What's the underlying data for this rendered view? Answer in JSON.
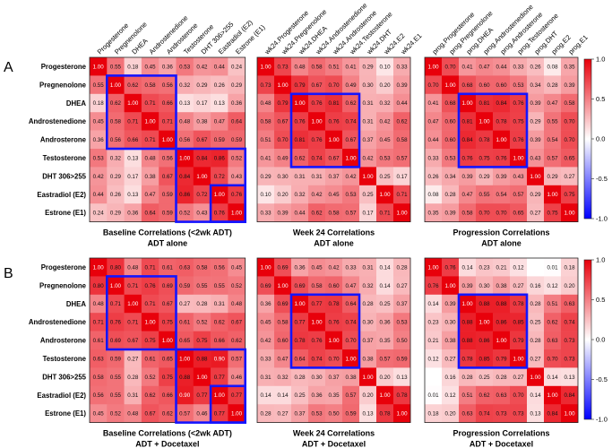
{
  "figure": {
    "panel_labels": [
      "A",
      "B"
    ],
    "colorbar_ticks": [
      "1.0",
      "0.5",
      "0.0",
      "-0.5",
      "-1.0"
    ],
    "colorbar_range": [
      -1.0,
      1.0
    ],
    "colors": {
      "positive": "#e8000b",
      "neutral": "#ffffff",
      "negative": "#0000ff",
      "highlight_box": "#1414ff"
    }
  },
  "chart_data": [
    {
      "type": "heatmap",
      "id": "A1",
      "title": "Baseline Correlations (<2wk ADT)",
      "subtitle": "ADT alone",
      "row_labels": [
        "Progesterone",
        "Pregnenolone",
        "DHEA",
        "Androstenedione",
        "Androsterone",
        "Testosterone",
        "DHT 306>255",
        "Eastradiol (E2)",
        "Estrone (E1)"
      ],
      "col_labels": [
        "Progesterone",
        "Pregnenolone",
        "DHEA",
        "Androstenedione",
        "Androsterone",
        "Testosterone",
        "DHT 306>255",
        "Eastradiol (E2)",
        "Estrone (E1)"
      ],
      "values": [
        [
          "1.00",
          "0.55",
          "0.18",
          "0.45",
          "0.36",
          "0.53",
          "0.42",
          "0.44",
          "0.24"
        ],
        [
          "0.55",
          "1.00",
          "0.62",
          "0.58",
          "0.56",
          "0.32",
          "0.29",
          "0.26",
          "0.29"
        ],
        [
          "0.18",
          "0.62",
          "1.00",
          "0.71",
          "0.66",
          "0.13",
          "0.17",
          "0.13",
          "0.36"
        ],
        [
          "0.45",
          "0.58",
          "0.71",
          "1.00",
          "0.71",
          "0.48",
          "0.38",
          "0.47",
          "0.64"
        ],
        [
          "0.36",
          "0.56",
          "0.66",
          "0.71",
          "1.00",
          "0.56",
          "0.67",
          "0.59",
          "0.59"
        ],
        [
          "0.53",
          "0.32",
          "0.13",
          "0.48",
          "0.56",
          "1.00",
          "0.84",
          "0.86",
          "0.52"
        ],
        [
          "0.42",
          "0.29",
          "0.17",
          "0.38",
          "0.67",
          "0.84",
          "1.00",
          "0.72",
          "0.43"
        ],
        [
          "0.44",
          "0.26",
          "0.13",
          "0.47",
          "0.59",
          "0.86",
          "0.72",
          "1.00",
          "0.76"
        ],
        [
          "0.24",
          "0.29",
          "0.36",
          "0.64",
          "0.59",
          "0.52",
          "0.43",
          "0.76",
          "1.00"
        ]
      ],
      "boxes": [
        {
          "r0": 1,
          "c0": 1,
          "r1": 4,
          "c1": 4
        },
        {
          "r0": 5,
          "c0": 5,
          "r1": 8,
          "c1": 8
        },
        {
          "r0": 7,
          "c0": 7,
          "r1": 8,
          "c1": 8
        }
      ]
    },
    {
      "type": "heatmap",
      "id": "A2",
      "title": "Week 24 Correlations",
      "subtitle": "ADT alone",
      "col_labels": [
        "wk24.Progesterone",
        "wk24.Pregnenolone",
        "wk24.DHEA",
        "wk24.Androstenedione",
        "wk24.Androsterone",
        "wk24.Testosterone",
        "wk24.DHT",
        "wk24.E2",
        "wk24.E1"
      ],
      "values": [
        [
          "1.00",
          "0.73",
          "0.48",
          "0.58",
          "0.51",
          "0.41",
          "0.29",
          "0.10",
          "0.33"
        ],
        [
          "0.73",
          "1.00",
          "0.79",
          "0.67",
          "0.70",
          "0.49",
          "0.30",
          "0.20",
          "0.39"
        ],
        [
          "0.48",
          "0.79",
          "1.00",
          "0.76",
          "0.81",
          "0.62",
          "0.31",
          "0.32",
          "0.44"
        ],
        [
          "0.58",
          "0.67",
          "0.76",
          "1.00",
          "0.76",
          "0.74",
          "0.31",
          "0.42",
          "0.62"
        ],
        [
          "0.51",
          "0.70",
          "0.81",
          "0.76",
          "1.00",
          "0.67",
          "0.37",
          "0.45",
          "0.58"
        ],
        [
          "0.41",
          "0.49",
          "0.62",
          "0.74",
          "0.67",
          "1.00",
          "0.42",
          "0.53",
          "0.57"
        ],
        [
          "0.29",
          "0.30",
          "0.31",
          "0.31",
          "0.37",
          "0.42",
          "1.00",
          "0.25",
          "0.17"
        ],
        [
          "0.10",
          "0.20",
          "0.32",
          "0.42",
          "0.45",
          "0.53",
          "0.25",
          "1.00",
          "0.71"
        ],
        [
          "0.33",
          "0.39",
          "0.44",
          "0.62",
          "0.58",
          "0.57",
          "0.17",
          "0.71",
          "1.00"
        ]
      ],
      "boxes": [
        {
          "r0": 2,
          "c0": 2,
          "r1": 5,
          "c1": 5
        }
      ]
    },
    {
      "type": "heatmap",
      "id": "A3",
      "title": "Progression Correlations",
      "subtitle": "ADT alone",
      "col_labels": [
        "prog.Progesterone",
        "prog.Pregnenolone",
        "prog.DHEA",
        "prog.Androstenedione",
        "prog.Androsterone",
        "prog.Testosterone",
        "prog.DHT",
        "prog.E2",
        "prog.E1"
      ],
      "values": [
        [
          "1.00",
          "0.70",
          "0.41",
          "0.47",
          "0.44",
          "0.33",
          "0.26",
          "0.08",
          "0.35"
        ],
        [
          "0.70",
          "1.00",
          "0.68",
          "0.60",
          "0.60",
          "0.53",
          "0.34",
          "0.28",
          "0.39"
        ],
        [
          "0.41",
          "0.68",
          "1.00",
          "0.81",
          "0.84",
          "0.76",
          "0.39",
          "0.47",
          "0.58"
        ],
        [
          "0.47",
          "0.60",
          "0.81",
          "1.00",
          "0.78",
          "0.75",
          "0.29",
          "0.55",
          "0.70"
        ],
        [
          "0.44",
          "0.60",
          "0.84",
          "0.78",
          "1.00",
          "0.76",
          "0.39",
          "0.54",
          "0.70"
        ],
        [
          "0.33",
          "0.53",
          "0.76",
          "0.75",
          "0.76",
          "1.00",
          "0.43",
          "0.57",
          "0.65"
        ],
        [
          "0.26",
          "0.34",
          "0.39",
          "0.29",
          "0.39",
          "0.43",
          "1.00",
          "0.29",
          "0.27"
        ],
        [
          "0.08",
          "0.28",
          "0.47",
          "0.55",
          "0.54",
          "0.57",
          "0.29",
          "1.00",
          "0.75"
        ],
        [
          "0.35",
          "0.39",
          "0.58",
          "0.70",
          "0.70",
          "0.65",
          "0.27",
          "0.75",
          "1.00"
        ]
      ],
      "boxes": [
        {
          "r0": 2,
          "c0": 2,
          "r1": 5,
          "c1": 5
        }
      ]
    },
    {
      "type": "heatmap",
      "id": "B1",
      "title": "Baseline Correlations (<2wk ADT)",
      "subtitle": "ADT + Docetaxel",
      "row_labels": [
        "Progesterone",
        "Pregnenolone",
        "DHEA",
        "Androstenedione",
        "Androsterone",
        "Testosterone",
        "DHT 306>255",
        "Eastradiol (E2)",
        "Estrone (E1)"
      ],
      "values": [
        [
          "1.00",
          "0.80",
          "0.48",
          "0.71",
          "0.61",
          "0.63",
          "0.58",
          "0.56",
          "0.45"
        ],
        [
          "0.80",
          "1.00",
          "0.71",
          "0.76",
          "0.69",
          "0.59",
          "0.55",
          "0.55",
          "0.52"
        ],
        [
          "0.48",
          "0.71",
          "1.00",
          "0.71",
          "0.67",
          "0.27",
          "0.28",
          "0.31",
          "0.48"
        ],
        [
          "0.71",
          "0.76",
          "0.71",
          "1.00",
          "0.75",
          "0.61",
          "0.52",
          "0.62",
          "0.67"
        ],
        [
          "0.61",
          "0.69",
          "0.67",
          "0.75",
          "1.00",
          "0.65",
          "0.75",
          "0.66",
          "0.62"
        ],
        [
          "0.63",
          "0.59",
          "0.27",
          "0.61",
          "0.65",
          "1.00",
          "0.88",
          "0.90",
          "0.57"
        ],
        [
          "0.58",
          "0.55",
          "0.28",
          "0.52",
          "0.75",
          "0.88",
          "1.00",
          "0.77",
          "0.46"
        ],
        [
          "0.56",
          "0.55",
          "0.31",
          "0.62",
          "0.66",
          "0.90",
          "0.77",
          "1.00",
          "0.77"
        ],
        [
          "0.45",
          "0.52",
          "0.48",
          "0.67",
          "0.62",
          "0.57",
          "0.46",
          "0.77",
          "1.00"
        ]
      ],
      "boxes": [
        {
          "r0": 1,
          "c0": 1,
          "r1": 4,
          "c1": 4
        },
        {
          "r0": 5,
          "c0": 5,
          "r1": 8,
          "c1": 8
        },
        {
          "r0": 7,
          "c0": 7,
          "r1": 8,
          "c1": 8
        }
      ]
    },
    {
      "type": "heatmap",
      "id": "B2",
      "title": "Week 24 Correlations",
      "subtitle": "ADT + Docetaxel",
      "values": [
        [
          "1.00",
          "0.69",
          "0.36",
          "0.45",
          "0.42",
          "0.33",
          "0.31",
          "0.14",
          "0.28"
        ],
        [
          "0.69",
          "1.00",
          "0.69",
          "0.58",
          "0.60",
          "0.47",
          "0.32",
          "0.14",
          "0.27"
        ],
        [
          "0.36",
          "0.69",
          "1.00",
          "0.77",
          "0.78",
          "0.64",
          "0.28",
          "0.25",
          "0.37"
        ],
        [
          "0.45",
          "0.58",
          "0.77",
          "1.00",
          "0.76",
          "0.74",
          "0.30",
          "0.36",
          "0.53"
        ],
        [
          "0.42",
          "0.60",
          "0.78",
          "0.76",
          "1.00",
          "0.70",
          "0.37",
          "0.35",
          "0.50"
        ],
        [
          "0.33",
          "0.47",
          "0.64",
          "0.74",
          "0.70",
          "1.00",
          "0.38",
          "0.57",
          "0.59"
        ],
        [
          "0.31",
          "0.32",
          "0.28",
          "0.30",
          "0.37",
          "0.38",
          "1.00",
          "0.20",
          "0.13"
        ],
        [
          "0.14",
          "0.14",
          "0.25",
          "0.36",
          "0.35",
          "0.57",
          "0.20",
          "1.00",
          "0.78"
        ],
        [
          "0.28",
          "0.27",
          "0.37",
          "0.53",
          "0.50",
          "0.59",
          "0.13",
          "0.78",
          "1.00"
        ]
      ],
      "boxes": [
        {
          "r0": 2,
          "c0": 2,
          "r1": 5,
          "c1": 5
        }
      ]
    },
    {
      "type": "heatmap",
      "id": "B3",
      "title": "Progression Correlations",
      "subtitle": "ADT + Docetaxel",
      "values": [
        [
          "1.00",
          "0.76",
          "0.14",
          "0.23",
          "0.21",
          "0.12",
          "",
          "0.01",
          "0.18"
        ],
        [
          "0.76",
          "1.00",
          "0.39",
          "0.30",
          "0.38",
          "0.27",
          "0.16",
          "0.12",
          "0.20"
        ],
        [
          "0.14",
          "0.39",
          "1.00",
          "0.88",
          "0.88",
          "0.78",
          "0.28",
          "0.51",
          "0.63"
        ],
        [
          "0.23",
          "0.30",
          "0.88",
          "1.00",
          "0.86",
          "0.85",
          "0.25",
          "0.62",
          "0.74"
        ],
        [
          "0.21",
          "0.38",
          "0.88",
          "0.86",
          "1.00",
          "0.79",
          "0.28",
          "0.63",
          "0.73"
        ],
        [
          "0.12",
          "0.27",
          "0.78",
          "0.85",
          "0.79",
          "1.00",
          "0.27",
          "0.70",
          "0.73"
        ],
        [
          "",
          "0.16",
          "0.28",
          "0.25",
          "0.28",
          "0.27",
          "1.00",
          "0.14",
          "0.13"
        ],
        [
          "0.01",
          "0.12",
          "0.51",
          "0.62",
          "0.63",
          "0.70",
          "0.14",
          "1.00",
          "0.84"
        ],
        [
          "0.18",
          "0.20",
          "0.63",
          "0.74",
          "0.73",
          "0.73",
          "0.13",
          "0.84",
          "1.00"
        ]
      ],
      "boxes": [
        {
          "r0": 2,
          "c0": 2,
          "r1": 5,
          "c1": 5
        }
      ]
    }
  ]
}
